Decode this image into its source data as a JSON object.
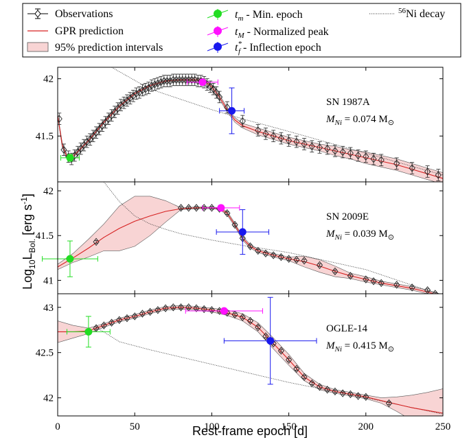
{
  "legend": {
    "items": [
      {
        "key": "observations",
        "label": "Observations"
      },
      {
        "key": "gpr",
        "label": "GPR prediction"
      },
      {
        "key": "interval",
        "label": "95% prediction intervals"
      },
      {
        "key": "tmin",
        "symbol": "t",
        "sub": "m",
        "sup": "",
        "label": " - Min. epoch"
      },
      {
        "key": "tpeak",
        "symbol": "t",
        "sub": "M",
        "sup": "",
        "label": " - Normalized peak"
      },
      {
        "key": "tinfl",
        "symbol": "t",
        "sub": "f",
        "sup": "*",
        "label": " - Inflection epoch"
      },
      {
        "key": "nidecay",
        "label_sup": "56",
        "label": "Ni decay"
      }
    ]
  },
  "colors": {
    "gpr_line": "#d62020",
    "interval_fill": "#f8d4d4",
    "interval_edge": "#555555",
    "min_epoch": "#22dd22",
    "peak": "#ff11ff",
    "inflection": "#1818ee",
    "observations": "#222222",
    "ni_decay": "#333333"
  },
  "axes": {
    "xlabel": "Rest-frame epoch [d]",
    "ylabel_pre": "Log",
    "ylabel_sub1": "10",
    "ylabel_mid": "L",
    "ylabel_sub2": "Bol.",
    "ylabel_post": " [erg s",
    "ylabel_sup": "-1",
    "ylabel_end": "]"
  },
  "chart_data": [
    {
      "type": "line",
      "name": "SN 1987A",
      "mni_text": "= 0.074 M",
      "xlim": [
        0,
        250
      ],
      "ylim": [
        41.1,
        42.1
      ],
      "yticks": [
        41.5,
        42
      ],
      "xticks": [
        0,
        50,
        100,
        150,
        200,
        250
      ],
      "observations": {
        "x": [
          1,
          4,
          7,
          9,
          11,
          13,
          15,
          17,
          19,
          21,
          23,
          25,
          27,
          29,
          31,
          33,
          35,
          37,
          39,
          41,
          43,
          45,
          47,
          49,
          51,
          53,
          55,
          57,
          59,
          61,
          63,
          65,
          67,
          69,
          71,
          73,
          75,
          77,
          79,
          81,
          83,
          85,
          87,
          89,
          91,
          93,
          95,
          97,
          99,
          101,
          103,
          105,
          110,
          120,
          130,
          135,
          140,
          145,
          150,
          155,
          160,
          165,
          170,
          175,
          180,
          185,
          190,
          195,
          200,
          205,
          210,
          220,
          230,
          240,
          247
        ],
        "y": [
          41.65,
          41.38,
          41.32,
          41.3,
          41.33,
          41.36,
          41.39,
          41.42,
          41.45,
          41.47,
          41.5,
          41.53,
          41.56,
          41.59,
          41.62,
          41.65,
          41.68,
          41.71,
          41.74,
          41.77,
          41.79,
          41.81,
          41.83,
          41.85,
          41.87,
          41.88,
          41.9,
          41.91,
          41.92,
          41.94,
          41.95,
          41.96,
          41.97,
          41.98,
          41.98,
          41.98,
          41.99,
          41.99,
          41.99,
          41.99,
          41.99,
          41.99,
          41.99,
          41.99,
          41.98,
          41.98,
          41.97,
          41.95,
          41.93,
          41.91,
          41.88,
          41.84,
          41.75,
          41.63,
          41.55,
          41.52,
          41.5,
          41.48,
          41.46,
          41.45,
          41.43,
          41.41,
          41.4,
          41.39,
          41.37,
          41.36,
          41.35,
          41.33,
          41.32,
          41.3,
          41.29,
          41.26,
          41.22,
          41.19,
          41.16
        ],
        "err": 0.05
      },
      "gpr": {
        "x": [
          0,
          3,
          6,
          8,
          12,
          20,
          30,
          40,
          50,
          60,
          70,
          80,
          90,
          95,
          100,
          105,
          110,
          115,
          120,
          130,
          140,
          150,
          160,
          170,
          180,
          190,
          200,
          210,
          220,
          230,
          240,
          250
        ],
        "y": [
          41.68,
          41.42,
          41.32,
          41.3,
          41.35,
          41.46,
          41.62,
          41.76,
          41.87,
          41.94,
          41.98,
          41.99,
          41.99,
          41.98,
          41.93,
          41.84,
          41.73,
          41.64,
          41.59,
          41.54,
          41.5,
          41.46,
          41.43,
          41.4,
          41.37,
          41.34,
          41.31,
          41.28,
          41.25,
          41.21,
          41.17,
          41.13
        ],
        "halfwidth": [
          0.01,
          0.02,
          0.02,
          0.02,
          0.01,
          0.01,
          0.01,
          0.01,
          0.01,
          0.01,
          0.01,
          0.01,
          0.02,
          0.02,
          0.02,
          0.02,
          0.02,
          0.02,
          0.02,
          0.03,
          0.03,
          0.03,
          0.03,
          0.03,
          0.04,
          0.04,
          0.05,
          0.05,
          0.05,
          0.05,
          0.05,
          0.05
        ]
      },
      "ni_decay": {
        "x": [
          35,
          60,
          80,
          100,
          120,
          150,
          200,
          250
        ],
        "y": [
          42.1,
          41.91,
          41.82,
          41.73,
          41.65,
          41.54,
          41.35,
          41.16
        ]
      },
      "tmin": {
        "x": 8,
        "y": 41.31,
        "xerr": 6,
        "yerr": 0.03
      },
      "tpeak": {
        "x": 94,
        "y": 41.97,
        "xerr": 10,
        "yerr": 0.02
      },
      "tinfl": {
        "x": 113,
        "y": 41.72,
        "xerr": 8,
        "yerr": 0.2
      }
    },
    {
      "type": "line",
      "name": "SN 2009E",
      "mni_text": "= 0.039 M",
      "xlim": [
        0,
        250
      ],
      "ylim": [
        40.85,
        42.1
      ],
      "yticks": [
        41,
        41.5,
        42
      ],
      "xticks": [
        0,
        50,
        100,
        150,
        200,
        250
      ],
      "observations": {
        "x": [
          25,
          80,
          85,
          90,
          95,
          100,
          105,
          110,
          115,
          120,
          125,
          130,
          135,
          140,
          145,
          150,
          155,
          160,
          170,
          180,
          190,
          200,
          205,
          210,
          220,
          230,
          240,
          245,
          250
        ],
        "y": [
          41.43,
          41.81,
          41.81,
          41.81,
          41.81,
          41.81,
          41.8,
          41.75,
          41.62,
          41.47,
          41.38,
          41.33,
          41.3,
          41.28,
          41.26,
          41.24,
          41.23,
          41.22,
          41.17,
          41.1,
          41.05,
          41.01,
          40.99,
          40.97,
          40.95,
          40.92,
          40.89,
          40.85,
          40.82
        ],
        "err": 0.015
      },
      "gpr": {
        "x": [
          0,
          10,
          20,
          30,
          40,
          50,
          60,
          70,
          80,
          90,
          100,
          105,
          110,
          115,
          120,
          125,
          130,
          140,
          150,
          160,
          170,
          180,
          190,
          200,
          210,
          220,
          230,
          240,
          250
        ],
        "y": [
          41.15,
          41.25,
          41.36,
          41.48,
          41.58,
          41.66,
          41.72,
          41.77,
          41.8,
          41.81,
          41.81,
          41.8,
          41.75,
          41.62,
          41.47,
          41.38,
          41.33,
          41.28,
          41.24,
          41.21,
          41.16,
          41.1,
          41.05,
          41.01,
          40.97,
          40.94,
          40.91,
          40.87,
          40.82
        ],
        "halfwidth": [
          0.03,
          0.05,
          0.1,
          0.15,
          0.25,
          0.28,
          0.22,
          0.12,
          0.01,
          0.01,
          0.01,
          0.01,
          0.02,
          0.02,
          0.02,
          0.02,
          0.02,
          0.02,
          0.02,
          0.06,
          0.07,
          0.06,
          0.03,
          0.03,
          0.02,
          0.02,
          0.02,
          0.02,
          0.02
        ]
      },
      "ni_decay": {
        "x": [
          30,
          40,
          50,
          60,
          70,
          80,
          100,
          120,
          150,
          200,
          250
        ],
        "y": [
          42.1,
          41.88,
          41.72,
          41.63,
          41.57,
          41.52,
          41.45,
          41.39,
          41.31,
          41.12,
          40.83
        ]
      },
      "tmin": {
        "x": 8,
        "y": 41.24,
        "xerr": 18,
        "yerr": 0.2
      },
      "tpeak": {
        "x": 106,
        "y": 41.81,
        "xerr": 12,
        "yerr": 0.02
      },
      "tinfl": {
        "x": 120,
        "y": 41.54,
        "xerr": 17,
        "yerr": 0.25
      }
    },
    {
      "type": "line",
      "name": "OGLE-14",
      "mni_text": "= 0.415 M",
      "xlim": [
        0,
        250
      ],
      "ylim": [
        41.8,
        43.15
      ],
      "yticks": [
        42,
        42.5,
        43
      ],
      "xticks": [
        0,
        50,
        100,
        150,
        200,
        250
      ],
      "observations": {
        "x": [
          20,
          25,
          30,
          35,
          40,
          45,
          50,
          55,
          60,
          65,
          70,
          75,
          80,
          85,
          90,
          95,
          100,
          105,
          110,
          115,
          120,
          125,
          130,
          135,
          140,
          145,
          150,
          155,
          160,
          165,
          170,
          175,
          180,
          185,
          190,
          195,
          200,
          215
        ],
        "y": [
          42.73,
          42.77,
          42.8,
          42.83,
          42.86,
          42.88,
          42.9,
          42.93,
          42.95,
          42.97,
          42.99,
          43.0,
          43.0,
          43.0,
          42.99,
          42.98,
          42.97,
          42.96,
          42.94,
          42.92,
          42.89,
          42.85,
          42.78,
          42.68,
          42.6,
          42.52,
          42.42,
          42.32,
          42.23,
          42.16,
          42.12,
          42.09,
          42.07,
          42.05,
          42.04,
          42.02,
          42.01,
          41.94
        ],
        "err": 0.015
      },
      "gpr": {
        "x": [
          0,
          10,
          20,
          30,
          40,
          50,
          60,
          70,
          80,
          90,
          100,
          110,
          120,
          130,
          140,
          150,
          160,
          170,
          180,
          190,
          200,
          210,
          220,
          230,
          240,
          250
        ],
        "y": [
          42.73,
          42.73,
          42.74,
          42.8,
          42.86,
          42.9,
          42.95,
          42.99,
          43.0,
          42.99,
          42.97,
          42.94,
          42.89,
          42.78,
          42.6,
          42.42,
          42.23,
          42.12,
          42.07,
          42.04,
          42.01,
          41.97,
          41.93,
          41.89,
          41.86,
          41.83
        ],
        "halfwidth": [
          0.12,
          0.07,
          0.03,
          0.02,
          0.02,
          0.02,
          0.02,
          0.02,
          0.02,
          0.02,
          0.02,
          0.03,
          0.04,
          0.05,
          0.06,
          0.06,
          0.04,
          0.03,
          0.02,
          0.02,
          0.02,
          0.03,
          0.08,
          0.14,
          0.2,
          0.27
        ]
      },
      "ni_decay": {
        "x": [
          25,
          40,
          60,
          80,
          100,
          120,
          150,
          200,
          250
        ],
        "y": [
          42.78,
          42.62,
          42.53,
          42.45,
          42.37,
          42.29,
          42.17,
          42.0,
          41.82
        ]
      },
      "tmin": {
        "x": 20,
        "y": 42.73,
        "xerr": 14,
        "yerr": 0.17
      },
      "tpeak": {
        "x": 108,
        "y": 42.96,
        "xerr": 25,
        "yerr": 0.02
      },
      "tinfl": {
        "x": 138,
        "y": 42.63,
        "xerr": 30,
        "yerr": 0.48
      }
    }
  ]
}
